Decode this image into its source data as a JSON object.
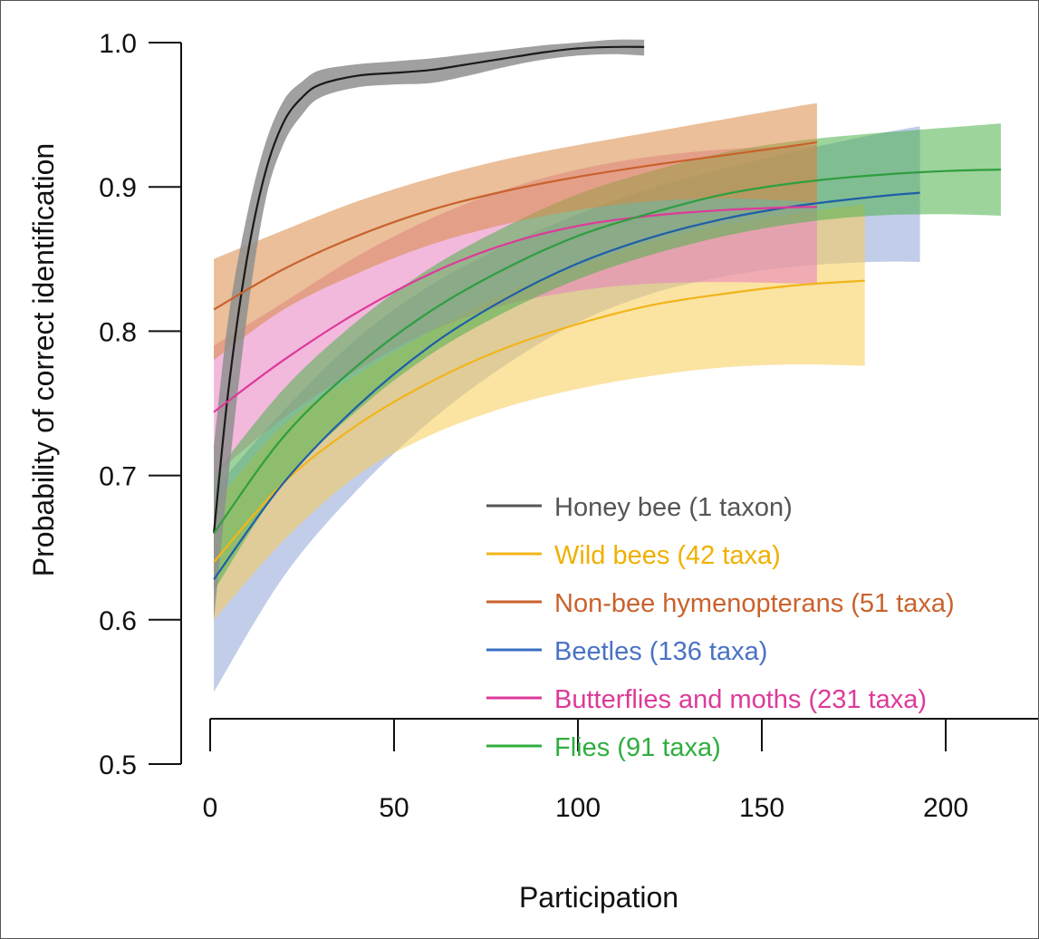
{
  "chart_data": {
    "type": "line",
    "xlabel": "Participation",
    "ylabel": "Probability of correct identification",
    "xlim": [
      0,
      220
    ],
    "ylim": [
      0.5,
      1.0
    ],
    "x_ticks": [
      0,
      50,
      100,
      150,
      200
    ],
    "y_ticks": [
      0.5,
      0.6,
      0.7,
      0.8,
      0.9,
      1.0
    ],
    "x_tick_labels": [
      "0",
      "50",
      "100",
      "150",
      "200"
    ],
    "y_tick_labels": [
      "0.5",
      "0.6",
      "0.7",
      "0.8",
      "0.9",
      "1.0"
    ],
    "legend_position": "bottom-right",
    "grid": false,
    "series": [
      {
        "name": "Honey bee (1 taxon)",
        "color": "#1a1a1a",
        "band_color": "#8f8f8f",
        "x": [
          1,
          5,
          10,
          15,
          20,
          25,
          30,
          40,
          50,
          60,
          70,
          80,
          90,
          100,
          110,
          118
        ],
        "y": [
          0.66,
          0.76,
          0.85,
          0.91,
          0.945,
          0.962,
          0.971,
          0.977,
          0.979,
          0.981,
          0.985,
          0.989,
          0.993,
          0.996,
          0.997,
          0.997
        ],
        "lower": [
          0.6,
          0.7,
          0.81,
          0.89,
          0.93,
          0.95,
          0.962,
          0.969,
          0.971,
          0.972,
          0.977,
          0.983,
          0.988,
          0.991,
          0.992,
          0.991
        ],
        "upper": [
          0.72,
          0.81,
          0.88,
          0.93,
          0.96,
          0.973,
          0.981,
          0.985,
          0.987,
          0.989,
          0.992,
          0.995,
          0.998,
          1.0,
          1.002,
          1.002
        ]
      },
      {
        "name": "Wild bees (42 taxa)",
        "color": "#f2b519",
        "band_color": "#f7cc55",
        "x": [
          1,
          20,
          40,
          60,
          80,
          100,
          120,
          140,
          160,
          178
        ],
        "y": [
          0.64,
          0.695,
          0.735,
          0.765,
          0.788,
          0.805,
          0.818,
          0.826,
          0.832,
          0.835
        ],
        "lower": [
          0.6,
          0.655,
          0.7,
          0.728,
          0.747,
          0.76,
          0.769,
          0.775,
          0.777,
          0.776
        ],
        "upper": [
          0.68,
          0.735,
          0.77,
          0.8,
          0.826,
          0.845,
          0.862,
          0.874,
          0.882,
          0.888
        ]
      },
      {
        "name": "Non-bee hymenopterans (51 taxa)",
        "color": "#c9622c",
        "band_color": "#d98b45",
        "x": [
          1,
          20,
          40,
          60,
          80,
          100,
          120,
          140,
          160,
          165
        ],
        "y": [
          0.815,
          0.843,
          0.866,
          0.884,
          0.897,
          0.907,
          0.915,
          0.922,
          0.929,
          0.931
        ],
        "lower": [
          0.78,
          0.815,
          0.84,
          0.86,
          0.874,
          0.884,
          0.89,
          0.892,
          0.89,
          0.888
        ],
        "upper": [
          0.85,
          0.87,
          0.89,
          0.906,
          0.919,
          0.929,
          0.938,
          0.947,
          0.956,
          0.958
        ]
      },
      {
        "name": "Beetles (136 taxa)",
        "color": "#1f5fa8",
        "band_color": "#8fa4d8",
        "x": [
          1,
          20,
          40,
          60,
          80,
          100,
          120,
          140,
          160,
          180,
          193
        ],
        "y": [
          0.628,
          0.695,
          0.748,
          0.79,
          0.822,
          0.847,
          0.865,
          0.878,
          0.887,
          0.893,
          0.896
        ],
        "lower": [
          0.55,
          0.63,
          0.69,
          0.738,
          0.776,
          0.806,
          0.826,
          0.838,
          0.845,
          0.848,
          0.848
        ],
        "upper": [
          0.69,
          0.745,
          0.795,
          0.832,
          0.859,
          0.881,
          0.899,
          0.913,
          0.925,
          0.936,
          0.942
        ]
      },
      {
        "name": "Butterflies and moths (231 taxa)",
        "color": "#dd3a99",
        "band_color": "#e77fc0",
        "x": [
          1,
          20,
          40,
          60,
          80,
          100,
          120,
          140,
          160,
          165
        ],
        "y": [
          0.744,
          0.78,
          0.813,
          0.84,
          0.86,
          0.873,
          0.88,
          0.884,
          0.886,
          0.886
        ],
        "lower": [
          0.7,
          0.74,
          0.773,
          0.8,
          0.818,
          0.828,
          0.833,
          0.834,
          0.833,
          0.832
        ],
        "upper": [
          0.79,
          0.82,
          0.852,
          0.878,
          0.898,
          0.912,
          0.921,
          0.926,
          0.928,
          0.929
        ]
      },
      {
        "name": "Flies (91 taxa)",
        "color": "#2f9e3f",
        "band_color": "#4db04a",
        "x": [
          1,
          20,
          40,
          60,
          80,
          100,
          120,
          140,
          160,
          180,
          200,
          215
        ],
        "y": [
          0.66,
          0.727,
          0.776,
          0.814,
          0.843,
          0.866,
          0.882,
          0.895,
          0.903,
          0.908,
          0.911,
          0.912
        ],
        "lower": [
          0.62,
          0.695,
          0.745,
          0.784,
          0.813,
          0.836,
          0.853,
          0.866,
          0.875,
          0.88,
          0.881,
          0.88
        ],
        "upper": [
          0.7,
          0.76,
          0.807,
          0.844,
          0.872,
          0.895,
          0.911,
          0.924,
          0.932,
          0.937,
          0.941,
          0.944
        ]
      }
    ]
  }
}
